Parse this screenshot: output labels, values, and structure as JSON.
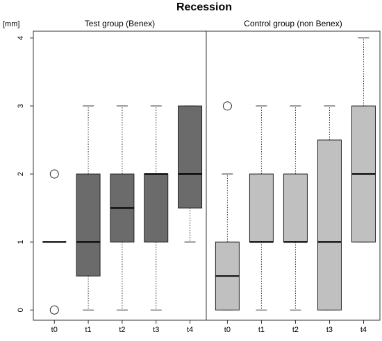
{
  "chart_data": {
    "type": "boxplot",
    "title": "Recession",
    "ylabel": "[mm]",
    "ylim": [
      -0.15,
      4.1
    ],
    "yticks": [
      "0",
      "1",
      "2",
      "3",
      "4"
    ],
    "categories": [
      "t0",
      "t1",
      "t2",
      "t3",
      "t4"
    ],
    "grid": false,
    "legend": "none",
    "groups": [
      {
        "name": "Test group (Benex)",
        "color": "#6b6b6b",
        "boxes": [
          {
            "label": "t0",
            "whisker_low": 1,
            "q1": 1,
            "median": 1,
            "q3": 1,
            "whisker_high": 1,
            "outliers": [
              0,
              2
            ]
          },
          {
            "label": "t1",
            "whisker_low": 0,
            "q1": 0.5,
            "median": 1,
            "q3": 2,
            "whisker_high": 3,
            "outliers": []
          },
          {
            "label": "t2",
            "whisker_low": 0,
            "q1": 1,
            "median": 1.5,
            "q3": 2,
            "whisker_high": 3,
            "outliers": []
          },
          {
            "label": "t3",
            "whisker_low": 0,
            "q1": 1,
            "median": 2,
            "q3": 2,
            "whisker_high": 3,
            "outliers": []
          },
          {
            "label": "t4",
            "whisker_low": 1,
            "q1": 1.5,
            "median": 2,
            "q3": 3,
            "whisker_high": 3,
            "outliers": []
          }
        ]
      },
      {
        "name": "Control group (non Benex)",
        "color": "#c0c0c0",
        "boxes": [
          {
            "label": "t0",
            "whisker_low": 0,
            "q1": 0,
            "median": 0.5,
            "q3": 1,
            "whisker_high": 2,
            "outliers": [
              3
            ]
          },
          {
            "label": "t1",
            "whisker_low": 0,
            "q1": 1,
            "median": 1,
            "q3": 2,
            "whisker_high": 3,
            "outliers": []
          },
          {
            "label": "t2",
            "whisker_low": 0,
            "q1": 1,
            "median": 1,
            "q3": 2,
            "whisker_high": 3,
            "outliers": []
          },
          {
            "label": "t3",
            "whisker_low": 0,
            "q1": 0,
            "median": 1,
            "q3": 2.5,
            "whisker_high": 3,
            "outliers": []
          },
          {
            "label": "t4",
            "whisker_low": 1,
            "q1": 1,
            "median": 2,
            "q3": 3,
            "whisker_high": 4,
            "outliers": []
          }
        ]
      }
    ]
  }
}
